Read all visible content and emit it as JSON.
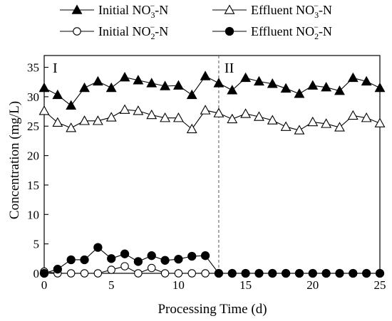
{
  "chart_data": {
    "type": "line",
    "xlabel": "Processing Time  (d)",
    "ylabel": "Concentration  (mg/L)",
    "xlim": [
      0,
      25
    ],
    "ylim": [
      0,
      37
    ],
    "x_ticks": [
      0,
      5,
      10,
      15,
      20,
      25
    ],
    "y_ticks": [
      0,
      5,
      10,
      15,
      20,
      25,
      30,
      35
    ],
    "stage_labels": [
      "I",
      "II"
    ],
    "stage_boundary_x": 13,
    "legend_position": "top",
    "x": [
      0,
      1,
      2,
      3,
      4,
      5,
      6,
      7,
      8,
      9,
      10,
      11,
      12,
      13,
      14,
      15,
      16,
      17,
      18,
      19,
      20,
      21,
      22,
      23,
      24,
      25
    ],
    "series": [
      {
        "legend": {
          "name": "Initial NO",
          "sub": "3",
          "sup": "−",
          "suffix": "-N"
        },
        "marker": "filled-triangle",
        "color": "#000000",
        "values": [
          31.5,
          30.3,
          28.5,
          31.5,
          32.6,
          31.5,
          33.3,
          32.8,
          32.3,
          31.8,
          31.9,
          30.3,
          33.5,
          32.3,
          31.1,
          33.2,
          32.6,
          32.2,
          31.4,
          30.5,
          31.9,
          31.6,
          31.0,
          33.2,
          32.6,
          31.5
        ]
      },
      {
        "legend": {
          "name": "Effluent NO",
          "sub": "3",
          "sup": "−",
          "suffix": "-N"
        },
        "marker": "open-triangle",
        "color": "#000000",
        "values": [
          27.6,
          25.6,
          24.7,
          25.9,
          25.9,
          26.5,
          27.8,
          27.6,
          26.9,
          26.4,
          26.4,
          24.5,
          27.7,
          27.2,
          26.2,
          27.1,
          26.6,
          26.0,
          24.9,
          24.3,
          25.7,
          25.4,
          24.8,
          26.8,
          26.4,
          25.5
        ]
      },
      {
        "legend": {
          "name": "Initial NO",
          "sub": "2",
          "sup": "−",
          "suffix": "-N"
        },
        "marker": "open-circle",
        "color": "#000000",
        "values": [
          0.3,
          0.0,
          0.0,
          0.0,
          0.0,
          0.6,
          1.2,
          0.0,
          0.9,
          0.0,
          0.0,
          0.0,
          0.0,
          0.0,
          0.0,
          0.0,
          0.0,
          0.0,
          0.0,
          0.0,
          0.0,
          0.0,
          0.0,
          0.0,
          0.0,
          0.0
        ]
      },
      {
        "legend": {
          "name": "Effluent NO",
          "sub": "2",
          "sup": "−",
          "suffix": "-N"
        },
        "marker": "filled-circle",
        "color": "#000000",
        "values": [
          0.0,
          0.7,
          2.3,
          2.3,
          4.4,
          2.5,
          3.3,
          2.0,
          3.0,
          2.2,
          2.4,
          2.9,
          3.0,
          0.0,
          0.0,
          0.0,
          0.0,
          0.0,
          0.0,
          0.0,
          0.0,
          0.0,
          0.0,
          0.0,
          0.0,
          0.0
        ]
      }
    ]
  }
}
